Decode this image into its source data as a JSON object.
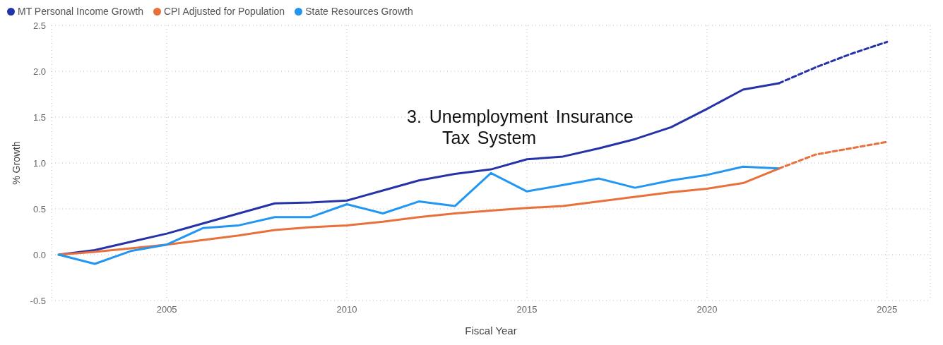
{
  "chart_data": {
    "type": "line",
    "xlabel": "Fiscal Year",
    "ylabel": "% Growth",
    "xlim": [
      2001.8,
      2026.2
    ],
    "xticks": [
      2005,
      2010,
      2015,
      2020,
      2025
    ],
    "ylim": [
      -0.5,
      2.5
    ],
    "yticks": [
      {
        "value": -0.5,
        "label": "-0.5"
      },
      {
        "value": 0,
        "label": "0.0"
      },
      {
        "value": 0.5,
        "label": "0.5"
      },
      {
        "value": 1,
        "label": "1.0"
      },
      {
        "value": 1.5,
        "label": "1.5"
      },
      {
        "value": 2,
        "label": "2.0"
      },
      {
        "value": 2.5,
        "label": "2.5"
      }
    ],
    "grid": true,
    "legend": "top left",
    "marker": "none",
    "annotations": [
      "3. Unemployment Insurance Tax System"
    ],
    "series": [
      {
        "name": "MT Personal Income Growth",
        "color": "#2633a8",
        "line_style": "solid",
        "x": [
          2002,
          2003,
          2004,
          2005,
          2006,
          2007,
          2008,
          2009,
          2010,
          2011,
          2012,
          2013,
          2014,
          2015,
          2016,
          2017,
          2018,
          2019,
          2020,
          2021,
          2022
        ],
        "values": [
          0,
          0.05,
          0.14,
          0.23,
          0.34,
          0.45,
          0.56,
          0.57,
          0.59,
          0.7,
          0.81,
          0.88,
          0.93,
          1.04,
          1.07,
          1.16,
          1.26,
          1.39,
          1.59,
          1.8,
          1.87
        ]
      },
      {
        "name": "CPI Adjusted for Population",
        "color": "#e8703a",
        "line_style": "solid",
        "x": [
          2002,
          2003,
          2004,
          2005,
          2006,
          2007,
          2008,
          2009,
          2010,
          2011,
          2012,
          2013,
          2014,
          2015,
          2016,
          2017,
          2018,
          2019,
          2020,
          2021,
          2022
        ],
        "values": [
          0,
          0.03,
          0.07,
          0.11,
          0.16,
          0.21,
          0.27,
          0.3,
          0.32,
          0.36,
          0.41,
          0.45,
          0.48,
          0.51,
          0.53,
          0.58,
          0.63,
          0.68,
          0.72,
          0.78,
          0.94
        ]
      },
      {
        "name": "State Resources Growth",
        "color": "#2196f3",
        "line_style": "solid",
        "x": [
          2002,
          2003,
          2004,
          2005,
          2006,
          2007,
          2008,
          2009,
          2010,
          2011,
          2012,
          2013,
          2014,
          2015,
          2016,
          2017,
          2018,
          2019,
          2020,
          2021,
          2022
        ],
        "values": [
          0,
          -0.1,
          0.04,
          0.11,
          0.29,
          0.32,
          0.41,
          0.41,
          0.55,
          0.45,
          0.58,
          0.53,
          0.89,
          0.69,
          0.76,
          0.83,
          0.73,
          0.81,
          0.87,
          0.96,
          0.94
        ]
      },
      {
        "color": "#2633a8",
        "line_style": "dashed",
        "x": [
          2022,
          2023,
          2024,
          2025
        ],
        "values": [
          1.87,
          2.04,
          2.19,
          2.32
        ]
      },
      {
        "color": "#e8703a",
        "line_style": "dashed",
        "x": [
          2022,
          2023,
          2024,
          2025
        ],
        "values": [
          0.94,
          1.09,
          1.16,
          1.23
        ]
      }
    ]
  }
}
